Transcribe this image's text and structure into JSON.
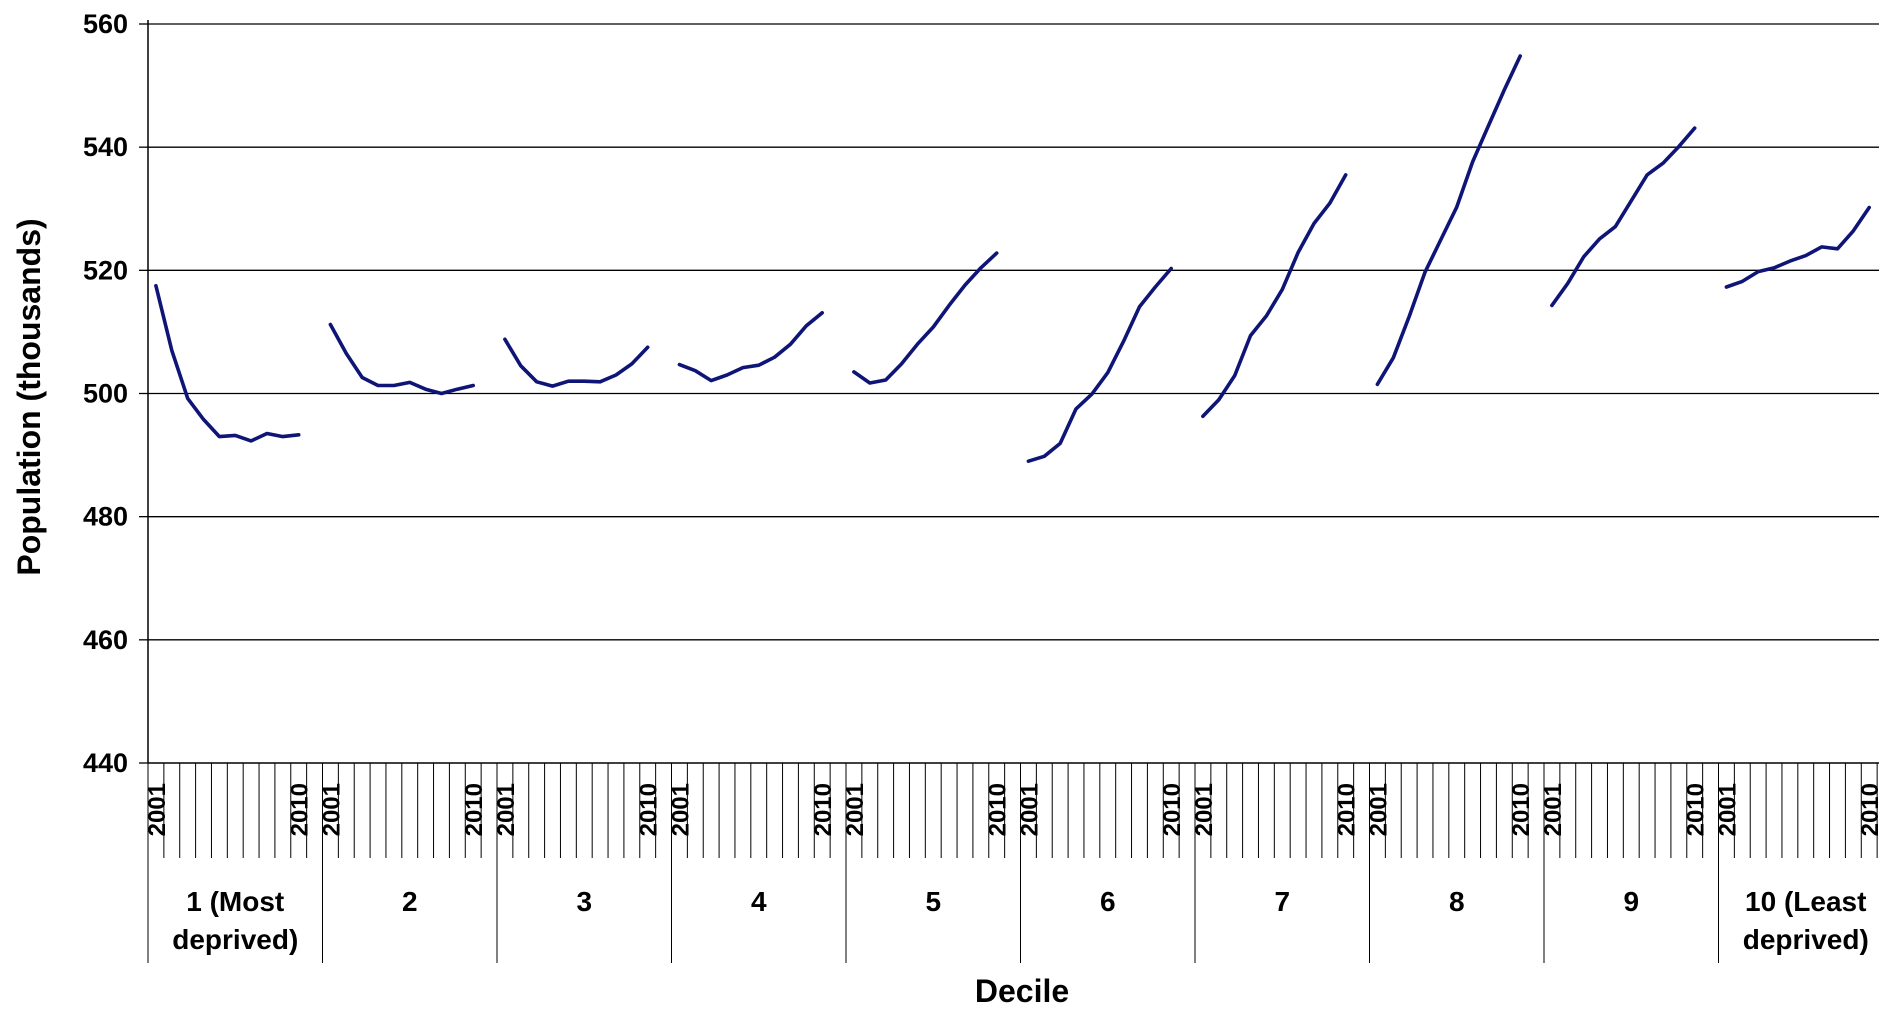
{
  "chart_data": {
    "type": "line",
    "title": "",
    "xlabel": "Decile",
    "ylabel": "Population (thousands)",
    "ylim": [
      440,
      560
    ],
    "y_ticks": [
      440,
      460,
      480,
      500,
      520,
      540,
      560
    ],
    "grid": true,
    "legend": "none",
    "line_color": "#0f1577",
    "years": [
      2001,
      2002,
      2003,
      2004,
      2005,
      2006,
      2007,
      2008,
      2009,
      2010
    ],
    "year_tick_labels": [
      "2001",
      "",
      "",
      "",
      "",
      "",
      "",
      "",
      "",
      "2010"
    ],
    "groups": [
      {
        "label_lines": [
          "1 (Most",
          "deprived)"
        ],
        "values": [
          517.5,
          507.0,
          499.2,
          495.8,
          493.0,
          493.2,
          492.3,
          493.5,
          493.0,
          493.3
        ]
      },
      {
        "label_lines": [
          "2"
        ],
        "values": [
          511.2,
          506.5,
          502.6,
          501.3,
          501.3,
          501.8,
          500.7,
          500.0,
          500.7,
          501.3
        ]
      },
      {
        "label_lines": [
          "3"
        ],
        "values": [
          508.8,
          504.5,
          501.9,
          501.2,
          502.0,
          502.0,
          501.9,
          503.0,
          504.8,
          507.5
        ]
      },
      {
        "label_lines": [
          "4"
        ],
        "values": [
          504.7,
          503.7,
          502.1,
          503.0,
          504.2,
          504.6,
          505.9,
          508.0,
          511.0,
          513.1
        ]
      },
      {
        "label_lines": [
          "5"
        ],
        "values": [
          503.5,
          501.7,
          502.2,
          504.8,
          508.0,
          510.8,
          514.3,
          517.6,
          520.4,
          522.8
        ]
      },
      {
        "label_lines": [
          "6"
        ],
        "values": [
          489.0,
          489.8,
          491.9,
          497.5,
          499.9,
          503.4,
          508.5,
          514.1,
          517.3,
          520.3
        ]
      },
      {
        "label_lines": [
          "7"
        ],
        "values": [
          496.3,
          499.0,
          502.9,
          509.4,
          512.6,
          516.9,
          522.9,
          527.6,
          530.9,
          535.5
        ]
      },
      {
        "label_lines": [
          "8"
        ],
        "values": [
          501.5,
          505.8,
          512.5,
          519.7,
          525.0,
          530.3,
          537.6,
          543.5,
          549.3,
          554.8
        ]
      },
      {
        "label_lines": [
          "9"
        ],
        "values": [
          514.3,
          517.9,
          522.2,
          525.1,
          527.1,
          531.3,
          535.5,
          537.4,
          540.1,
          543.1
        ]
      },
      {
        "label_lines": [
          "10 (Least",
          "deprived)"
        ],
        "values": [
          517.3,
          518.2,
          519.8,
          520.4,
          521.5,
          522.4,
          523.8,
          523.5,
          526.4,
          530.2
        ]
      }
    ]
  }
}
